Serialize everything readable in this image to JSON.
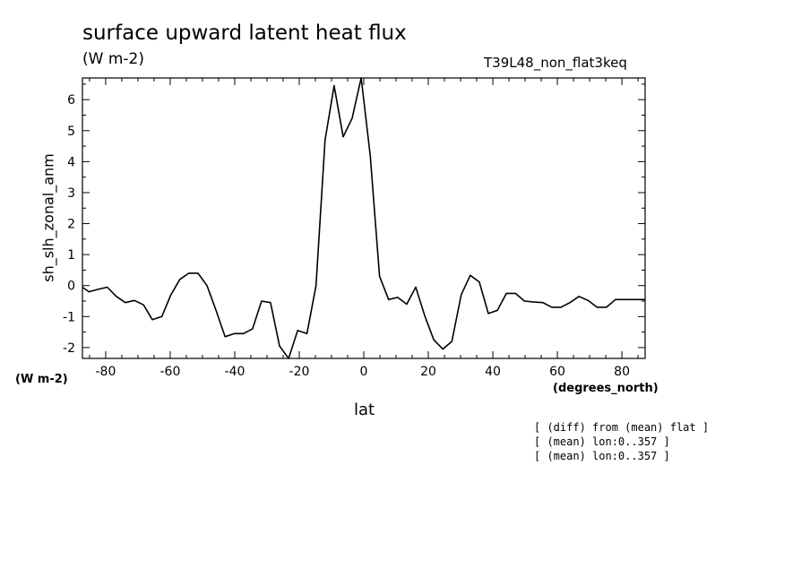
{
  "chart_data": {
    "type": "line",
    "title": "surface upward latent heat flux",
    "units": "(W m-2)",
    "run_label": "T39L48_non_flat3keq",
    "ylabel": "sh_slh_zonal_anm",
    "y_units": "(W m-2)",
    "xlabel": "lat",
    "x_units": "(degrees_north)",
    "xlim": [
      -87.2,
      87.2
    ],
    "ylim": [
      -2.35,
      6.7
    ],
    "x_ticks": [
      -80,
      -60,
      -40,
      -20,
      0,
      20,
      40,
      60,
      80
    ],
    "x_tick_labels": [
      "-80",
      "-60",
      "-40",
      "-20",
      "0",
      "20",
      "40",
      "60",
      "80"
    ],
    "y_ticks": [
      -2,
      -1,
      0,
      1,
      2,
      3,
      4,
      5,
      6
    ],
    "y_tick_labels": [
      "-2",
      "-1",
      "0",
      "1",
      "2",
      "3",
      "4",
      "5",
      "6"
    ],
    "grid": false,
    "series": [
      {
        "x": [
          -87.2,
          -85.2,
          -82.3,
          -79.5,
          -76.7,
          -73.9,
          -71.1,
          -68.3,
          -65.5,
          -62.6,
          -59.8,
          -57.0,
          -54.2,
          -51.4,
          -48.6,
          -45.8,
          -43.0,
          -40.1,
          -37.3,
          -34.5,
          -31.7,
          -28.9,
          -26.1,
          -23.3,
          -20.5,
          -17.6,
          -14.8,
          -12.0,
          -9.2,
          -6.4,
          -3.6,
          -0.8,
          2.0,
          4.9,
          7.7,
          10.5,
          13.3,
          16.1,
          18.9,
          21.7,
          24.5,
          27.3,
          30.2,
          33.0,
          35.8,
          38.6,
          41.4,
          44.2,
          47.0,
          49.8,
          52.7,
          55.5,
          58.3,
          61.1,
          63.9,
          66.7,
          69.5,
          72.3,
          75.2,
          78.0,
          80.8,
          83.6,
          86.4,
          87.2
        ],
        "y": [
          -0.05,
          -0.2,
          -0.12,
          -0.05,
          -0.35,
          -0.55,
          -0.48,
          -0.62,
          -1.1,
          -1.0,
          -0.3,
          0.2,
          0.4,
          0.4,
          0.0,
          -0.8,
          -1.65,
          -1.55,
          -1.55,
          -1.4,
          -0.5,
          -0.55,
          -1.95,
          -2.35,
          -1.45,
          -1.55,
          0.0,
          4.7,
          6.45,
          4.8,
          5.4,
          6.7,
          4.2,
          0.3,
          -0.45,
          -0.38,
          -0.6,
          -0.05,
          -0.98,
          -1.75,
          -2.05,
          -1.8,
          -0.3,
          0.33,
          0.12,
          -0.9,
          -0.8,
          -0.25,
          -0.25,
          -0.5,
          -0.53,
          -0.55,
          -0.7,
          -0.7,
          -0.55,
          -0.35,
          -0.48,
          -0.7,
          -0.7,
          -0.45,
          -0.45,
          -0.45,
          -0.45,
          -0.45
        ]
      }
    ]
  },
  "notes": [
    "[ (diff) from (mean) flat ]",
    "[ (mean) lon:0..357 ]",
    "[ (mean) lon:0..357 ]"
  ]
}
